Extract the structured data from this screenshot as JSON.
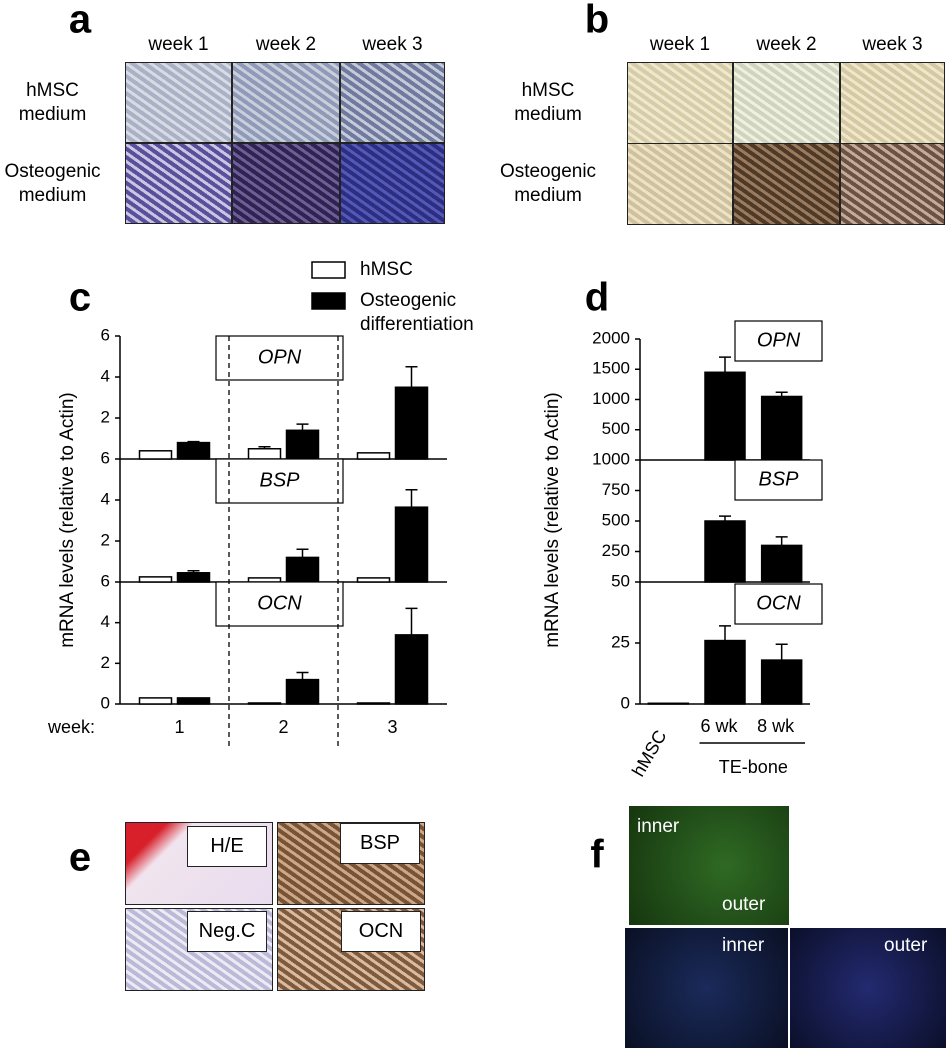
{
  "figure": {
    "a": {
      "label": "a",
      "columns": [
        "week 1",
        "week 2",
        "week 3"
      ],
      "rows": [
        "hMSC medium",
        "Osteogenic medium"
      ]
    },
    "b": {
      "label": "b",
      "columns": [
        "week 1",
        "week 2",
        "week 3"
      ],
      "rows": [
        "hMSC medium",
        "Osteogenic medium"
      ]
    },
    "e": {
      "label": "e",
      "images": [
        "H/E",
        "BSP",
        "Neg.C",
        "OCN"
      ]
    },
    "f": {
      "label": "f",
      "images": [
        "inner",
        "outer",
        "inner",
        "outer"
      ]
    }
  },
  "chart_data": [
    {
      "type": "bar",
      "label": "c",
      "ylabel": "mRNA levels (relative to  Actin)",
      "xlabel": "week:",
      "categories": [
        "1",
        "2",
        "3"
      ],
      "series": [
        {
          "name": "hMSC",
          "color": "#ffffff"
        },
        {
          "name": "Osteogenic differentiation",
          "color": "#000000"
        }
      ],
      "subplots": [
        {
          "title": "OPN",
          "ylim": [
            0,
            6
          ],
          "yticks": [
            2,
            4,
            6
          ],
          "values": [
            [
              0.4,
              0.5,
              0.3
            ],
            [
              0.8,
              1.4,
              3.5
            ]
          ],
          "errors": [
            [
              null,
              0.1,
              null
            ],
            [
              0.05,
              0.3,
              1.0
            ]
          ]
        },
        {
          "title": "BSP",
          "ylim": [
            0,
            6
          ],
          "yticks": [
            2,
            4,
            6
          ],
          "values": [
            [
              0.25,
              0.2,
              0.2
            ],
            [
              0.45,
              1.2,
              3.65
            ]
          ],
          "errors": [
            [
              null,
              null,
              null
            ],
            [
              0.1,
              0.4,
              0.85
            ]
          ]
        },
        {
          "title": "OCN",
          "ylim": [
            0,
            6
          ],
          "yticks": [
            0,
            2,
            4,
            6
          ],
          "values": [
            [
              0.3,
              0.05,
              0.05
            ],
            [
              0.3,
              1.2,
              3.4
            ]
          ],
          "errors": [
            [
              null,
              null,
              null
            ],
            [
              null,
              0.35,
              1.3
            ]
          ]
        }
      ]
    },
    {
      "type": "bar",
      "label": "d",
      "ylabel": "mRNA levels (relative to  Actin)",
      "categories": [
        "hMSC",
        "6 wk",
        "8 wk"
      ],
      "group_label": "TE-bone",
      "color": "#000000",
      "subplots": [
        {
          "title": "OPN",
          "ylim": [
            0,
            2000
          ],
          "yticks": [
            500,
            1000,
            1500,
            2000
          ],
          "values": [
            0,
            1450,
            1050
          ],
          "errors": [
            null,
            250,
            70
          ]
        },
        {
          "title": "BSP",
          "ylim": [
            0,
            1000
          ],
          "yticks": [
            250,
            500,
            750,
            1000
          ],
          "values": [
            0,
            500,
            300
          ],
          "errors": [
            null,
            40,
            70
          ]
        },
        {
          "title": "OCN",
          "ylim": [
            0,
            50
          ],
          "yticks": [
            0,
            25,
            50
          ],
          "values": [
            0.3,
            26,
            18
          ],
          "errors": [
            null,
            6,
            6.5
          ]
        }
      ]
    }
  ]
}
